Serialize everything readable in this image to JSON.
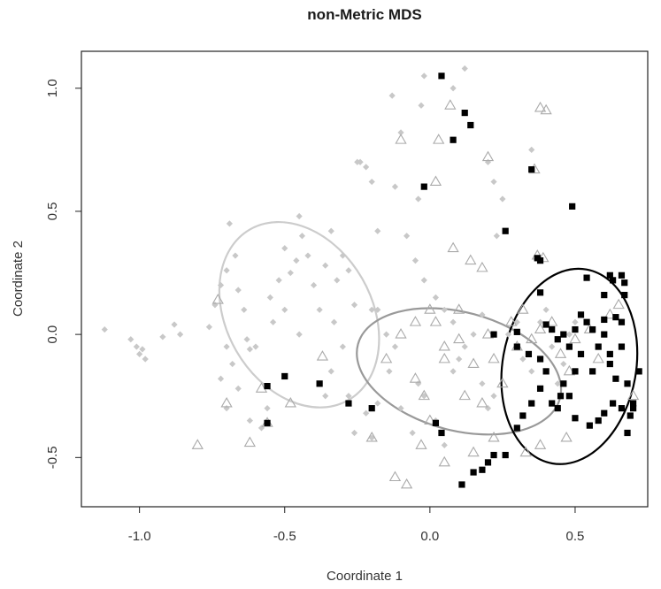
{
  "chart_data": {
    "type": "scatter",
    "title": "non-Metric MDS",
    "xlabel": "Coordinate 1",
    "ylabel": "Coordinate 2",
    "xlim": [
      -1.2,
      0.75
    ],
    "ylim": [
      -0.7,
      1.15
    ],
    "x_ticks": [
      -1.0,
      -0.5,
      0.0,
      0.5
    ],
    "x_tick_labels": [
      "-1.0",
      "-0.5",
      "0.0",
      "0.5"
    ],
    "y_ticks": [
      -0.5,
      0.0,
      0.5,
      1.0
    ],
    "y_tick_labels": [
      "-0.5",
      "0.0",
      "0.5",
      "1.0"
    ],
    "grid": false,
    "series": [
      {
        "marker": "diamond",
        "color": "#c8c8c8",
        "points": [
          [
            -1.12,
            0.02
          ],
          [
            -1.03,
            -0.02
          ],
          [
            -1.01,
            -0.05
          ],
          [
            -1.0,
            -0.08
          ],
          [
            -0.99,
            -0.06
          ],
          [
            -0.98,
            -0.1
          ],
          [
            -0.92,
            -0.01
          ],
          [
            -0.88,
            0.04
          ],
          [
            -0.86,
            0.0
          ],
          [
            -0.76,
            0.03
          ],
          [
            -0.74,
            0.12
          ],
          [
            -0.72,
            0.2
          ],
          [
            -0.7,
            0.26
          ],
          [
            -0.69,
            0.45
          ],
          [
            -0.67,
            0.32
          ],
          [
            -0.66,
            0.18
          ],
          [
            -0.64,
            0.1
          ],
          [
            -0.63,
            -0.02
          ],
          [
            -0.62,
            -0.06
          ],
          [
            -0.6,
            -0.05
          ],
          [
            -0.7,
            -0.05
          ],
          [
            -0.68,
            -0.12
          ],
          [
            -0.72,
            -0.18
          ],
          [
            -0.7,
            -0.3
          ],
          [
            -0.66,
            -0.22
          ],
          [
            -0.62,
            -0.35
          ],
          [
            -0.58,
            -0.38
          ],
          [
            -0.56,
            -0.3
          ],
          [
            -0.55,
            0.15
          ],
          [
            -0.52,
            0.22
          ],
          [
            -0.5,
            0.35
          ],
          [
            -0.48,
            0.25
          ],
          [
            -0.46,
            0.3
          ],
          [
            -0.45,
            0.48
          ],
          [
            -0.44,
            0.4
          ],
          [
            -0.42,
            0.32
          ],
          [
            -0.4,
            0.2
          ],
          [
            -0.38,
            0.1
          ],
          [
            -0.36,
            0.28
          ],
          [
            -0.34,
            0.42
          ],
          [
            -0.33,
            0.05
          ],
          [
            -0.32,
            0.22
          ],
          [
            -0.3,
            0.32
          ],
          [
            -0.28,
            0.26
          ],
          [
            -0.26,
            0.12
          ],
          [
            -0.25,
            0.7
          ],
          [
            -0.24,
            0.7
          ],
          [
            -0.22,
            0.68
          ],
          [
            -0.2,
            0.62
          ],
          [
            -0.18,
            0.42
          ],
          [
            -0.18,
            0.1
          ],
          [
            -0.2,
            0.1
          ],
          [
            -0.15,
            0.0
          ],
          [
            -0.12,
            0.6
          ],
          [
            -0.1,
            0.82
          ],
          [
            -0.08,
            0.4
          ],
          [
            -0.05,
            0.3
          ],
          [
            -0.04,
            0.55
          ],
          [
            -0.02,
            0.22
          ],
          [
            0.02,
            0.15
          ],
          [
            0.05,
            0.1
          ],
          [
            0.08,
            0.05
          ],
          [
            -0.12,
            -0.05
          ],
          [
            -0.14,
            -0.15
          ],
          [
            -0.1,
            -0.3
          ],
          [
            -0.06,
            -0.4
          ],
          [
            -0.04,
            -0.2
          ],
          [
            -0.02,
            -0.25
          ],
          [
            0.02,
            -0.35
          ],
          [
            0.05,
            -0.45
          ],
          [
            0.08,
            -0.15
          ],
          [
            0.1,
            -0.1
          ],
          [
            0.12,
            -0.05
          ],
          [
            0.15,
            0.0
          ],
          [
            0.18,
            0.08
          ],
          [
            0.2,
            0.7
          ],
          [
            0.22,
            0.62
          ],
          [
            0.25,
            0.55
          ],
          [
            0.23,
            0.4
          ],
          [
            0.18,
            -0.2
          ],
          [
            0.2,
            -0.3
          ],
          [
            0.22,
            -0.25
          ],
          [
            0.27,
            0.0
          ],
          [
            0.3,
            0.05
          ],
          [
            0.32,
            -0.1
          ],
          [
            0.35,
            -0.15
          ],
          [
            0.38,
            0.05
          ],
          [
            0.4,
            0.1
          ],
          [
            0.42,
            -0.05
          ],
          [
            0.44,
            -0.2
          ],
          [
            0.46,
            -0.12
          ],
          [
            0.48,
            0.0
          ],
          [
            0.5,
            0.05
          ],
          [
            0.35,
            0.75
          ],
          [
            0.12,
            1.08
          ],
          [
            0.08,
            1.0
          ],
          [
            -0.02,
            1.05
          ],
          [
            -0.13,
            0.97
          ],
          [
            -0.03,
            0.93
          ],
          [
            -0.3,
            -0.05
          ],
          [
            -0.34,
            -0.15
          ],
          [
            -0.36,
            -0.25
          ],
          [
            -0.28,
            -0.25
          ],
          [
            -0.22,
            -0.32
          ],
          [
            -0.26,
            -0.4
          ],
          [
            -0.2,
            -0.42
          ],
          [
            -0.18,
            -0.28
          ],
          [
            -0.5,
            0.1
          ],
          [
            -0.54,
            0.05
          ],
          [
            -0.45,
            0.0
          ]
        ]
      },
      {
        "marker": "triangle-open",
        "color": "#aaaaaa",
        "points": [
          [
            -0.8,
            -0.45
          ],
          [
            -0.7,
            -0.28
          ],
          [
            -0.73,
            0.14
          ],
          [
            -0.62,
            -0.44
          ],
          [
            -0.58,
            -0.22
          ],
          [
            -0.56,
            -0.36
          ],
          [
            -0.48,
            -0.28
          ],
          [
            -0.37,
            -0.09
          ],
          [
            -0.2,
            -0.42
          ],
          [
            -0.12,
            -0.58
          ],
          [
            -0.08,
            -0.61
          ],
          [
            -0.03,
            -0.45
          ],
          [
            -0.1,
            0.79
          ],
          [
            0.02,
            0.62
          ],
          [
            0.07,
            0.93
          ],
          [
            0.03,
            0.79
          ],
          [
            0.2,
            0.72
          ],
          [
            0.08,
            0.35
          ],
          [
            0.14,
            0.3
          ],
          [
            0.18,
            0.27
          ],
          [
            0.36,
            0.67
          ],
          [
            0.38,
            0.92
          ],
          [
            0.4,
            0.91
          ],
          [
            0.37,
            0.32
          ],
          [
            0.39,
            0.31
          ],
          [
            -0.15,
            -0.1
          ],
          [
            -0.1,
            0.0
          ],
          [
            -0.05,
            0.05
          ],
          [
            0.0,
            0.1
          ],
          [
            0.05,
            -0.05
          ],
          [
            0.1,
            0.1
          ],
          [
            0.15,
            -0.12
          ],
          [
            0.2,
            0.0
          ],
          [
            0.22,
            -0.1
          ],
          [
            0.25,
            -0.2
          ],
          [
            0.3,
            -0.05
          ],
          [
            0.28,
            0.05
          ],
          [
            0.32,
            0.1
          ],
          [
            0.35,
            -0.02
          ],
          [
            0.38,
            0.02
          ],
          [
            0.42,
            0.05
          ],
          [
            0.45,
            -0.08
          ],
          [
            0.48,
            -0.15
          ],
          [
            0.5,
            -0.02
          ],
          [
            0.55,
            0.02
          ],
          [
            0.58,
            -0.1
          ],
          [
            0.62,
            0.08
          ],
          [
            0.65,
            0.12
          ],
          [
            0.7,
            -0.25
          ],
          [
            0.47,
            -0.42
          ],
          [
            0.38,
            -0.45
          ],
          [
            0.33,
            -0.48
          ],
          [
            0.22,
            -0.42
          ],
          [
            0.15,
            -0.48
          ],
          [
            0.05,
            -0.52
          ],
          [
            -0.02,
            -0.25
          ],
          [
            -0.05,
            -0.18
          ],
          [
            0.0,
            -0.35
          ],
          [
            0.05,
            -0.1
          ],
          [
            0.1,
            -0.02
          ],
          [
            0.12,
            -0.25
          ],
          [
            0.18,
            -0.28
          ],
          [
            0.02,
            0.05
          ]
        ]
      },
      {
        "marker": "square",
        "color": "#000000",
        "points": [
          [
            0.04,
            1.05
          ],
          [
            0.12,
            0.9
          ],
          [
            0.14,
            0.85
          ],
          [
            0.08,
            0.79
          ],
          [
            -0.02,
            0.6
          ],
          [
            0.35,
            0.67
          ],
          [
            0.49,
            0.52
          ],
          [
            0.26,
            0.42
          ],
          [
            0.37,
            0.31
          ],
          [
            0.38,
            0.3
          ],
          [
            0.54,
            0.23
          ],
          [
            0.62,
            0.24
          ],
          [
            0.63,
            0.22
          ],
          [
            0.66,
            0.24
          ],
          [
            0.67,
            0.21
          ],
          [
            0.67,
            0.16
          ],
          [
            0.6,
            0.16
          ],
          [
            0.38,
            0.17
          ],
          [
            0.3,
            -0.05
          ],
          [
            0.3,
            0.01
          ],
          [
            0.34,
            -0.08
          ],
          [
            0.38,
            -0.1
          ],
          [
            0.4,
            0.04
          ],
          [
            0.42,
            0.02
          ],
          [
            0.44,
            -0.02
          ],
          [
            0.46,
            0.0
          ],
          [
            0.48,
            -0.05
          ],
          [
            0.5,
            -0.15
          ],
          [
            0.52,
            -0.08
          ],
          [
            0.54,
            0.05
          ],
          [
            0.56,
            0.02
          ],
          [
            0.58,
            -0.05
          ],
          [
            0.6,
            0.0
          ],
          [
            0.62,
            -0.12
          ],
          [
            0.64,
            -0.18
          ],
          [
            0.66,
            -0.05
          ],
          [
            0.68,
            -0.2
          ],
          [
            0.7,
            -0.28
          ],
          [
            0.72,
            -0.15
          ],
          [
            0.68,
            -0.4
          ],
          [
            0.69,
            -0.33
          ],
          [
            0.66,
            -0.3
          ],
          [
            0.63,
            -0.28
          ],
          [
            0.6,
            -0.32
          ],
          [
            0.58,
            -0.35
          ],
          [
            0.55,
            -0.37
          ],
          [
            0.5,
            -0.34
          ],
          [
            0.48,
            -0.25
          ],
          [
            0.46,
            -0.2
          ],
          [
            0.44,
            -0.3
          ],
          [
            0.42,
            -0.28
          ],
          [
            0.38,
            -0.22
          ],
          [
            0.35,
            -0.28
          ],
          [
            0.32,
            -0.33
          ],
          [
            0.3,
            -0.38
          ],
          [
            0.2,
            -0.52
          ],
          [
            0.22,
            -0.49
          ],
          [
            0.26,
            -0.49
          ],
          [
            0.11,
            -0.61
          ],
          [
            0.15,
            -0.56
          ],
          [
            0.18,
            -0.55
          ],
          [
            0.02,
            -0.36
          ],
          [
            0.04,
            -0.4
          ],
          [
            -0.2,
            -0.3
          ],
          [
            -0.28,
            -0.28
          ],
          [
            -0.38,
            -0.2
          ],
          [
            -0.5,
            -0.17
          ],
          [
            -0.56,
            -0.21
          ],
          [
            -0.56,
            -0.36
          ],
          [
            0.22,
            0.0
          ],
          [
            0.66,
            0.05
          ],
          [
            0.64,
            0.07
          ],
          [
            0.6,
            0.06
          ],
          [
            0.52,
            0.08
          ],
          [
            0.5,
            0.02
          ],
          [
            0.45,
            -0.25
          ],
          [
            0.56,
            -0.15
          ],
          [
            0.62,
            -0.08
          ],
          [
            0.7,
            -0.3
          ],
          [
            0.4,
            -0.15
          ]
        ]
      }
    ],
    "ellipses": [
      {
        "color": "#cccccc",
        "center": [
          -0.45,
          0.08
        ],
        "rx": 0.25,
        "ry": 0.4,
        "angle_deg": -30
      },
      {
        "color": "#999999",
        "center": [
          0.1,
          -0.15
        ],
        "rx": 0.36,
        "ry": 0.24,
        "angle_deg": 15
      },
      {
        "color": "#000000",
        "center": [
          0.48,
          -0.13
        ],
        "rx": 0.23,
        "ry": 0.4,
        "angle_deg": 10
      }
    ]
  }
}
